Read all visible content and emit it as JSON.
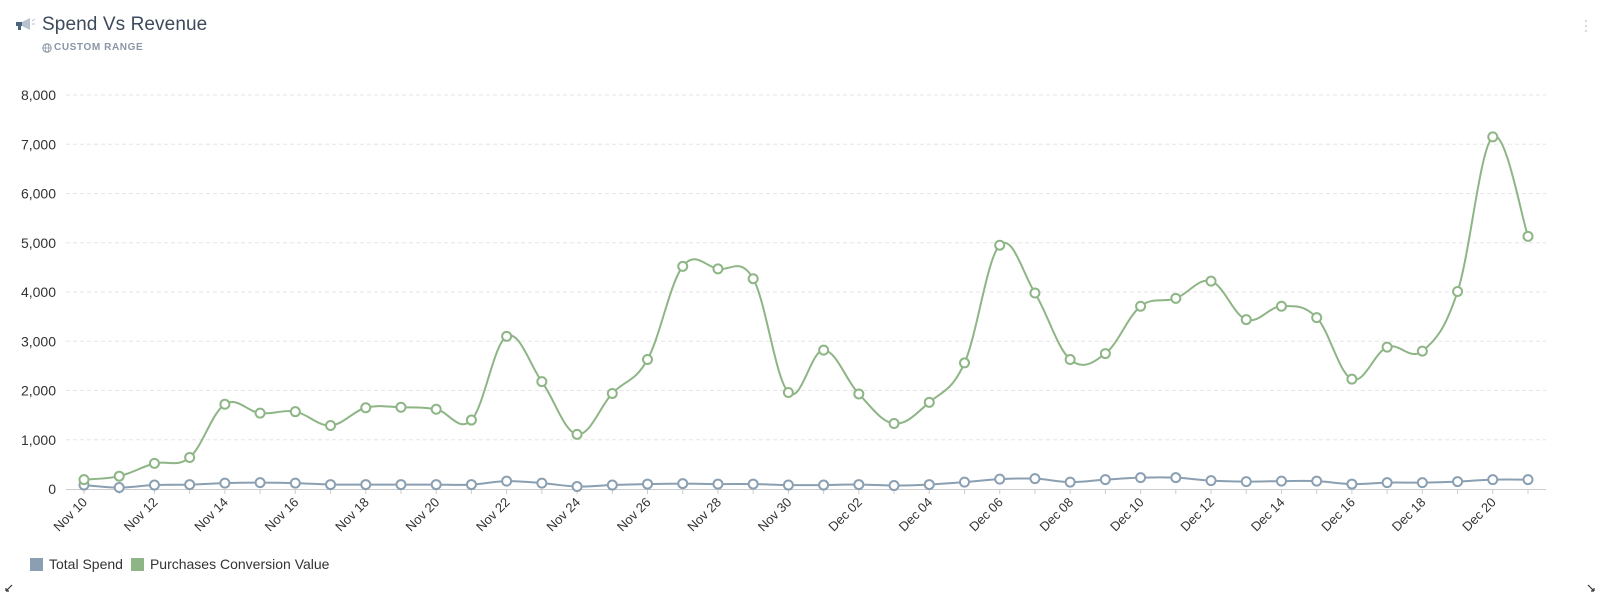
{
  "header": {
    "title": "Spend Vs Revenue",
    "subtitle": "CUSTOM RANGE",
    "icon": "megaphone-icon"
  },
  "colors": {
    "spend": "#8a9fb2",
    "revenue": "#8db585",
    "grid": "#e6e6e6",
    "axis": "#cccccc"
  },
  "chart_data": {
    "type": "line",
    "title": "Spend Vs Revenue",
    "xlabel": "",
    "ylabel": "",
    "ylim": [
      0,
      8000
    ],
    "y_ticks": [
      "0",
      "1,000",
      "2,000",
      "3,000",
      "4,000",
      "5,000",
      "6,000",
      "7,000",
      "8,000"
    ],
    "x": [
      "Nov 10",
      "Nov 11",
      "Nov 12",
      "Nov 13",
      "Nov 14",
      "Nov 15",
      "Nov 16",
      "Nov 17",
      "Nov 18",
      "Nov 19",
      "Nov 20",
      "Nov 21",
      "Nov 22",
      "Nov 23",
      "Nov 24",
      "Nov 25",
      "Nov 26",
      "Nov 27",
      "Nov 28",
      "Nov 29",
      "Nov 30",
      "Dec 01",
      "Dec 02",
      "Dec 03",
      "Dec 04",
      "Dec 05",
      "Dec 06",
      "Dec 07",
      "Dec 08",
      "Dec 09",
      "Dec 10",
      "Dec 11",
      "Dec 12",
      "Dec 13",
      "Dec 14",
      "Dec 15",
      "Dec 16",
      "Dec 17",
      "Dec 18",
      "Dec 19",
      "Dec 20",
      "Dec 21"
    ],
    "x_tick_labels": [
      "Nov 10",
      "Nov 12",
      "Nov 14",
      "Nov 16",
      "Nov 18",
      "Nov 20",
      "Nov 22",
      "Nov 24",
      "Nov 26",
      "Nov 28",
      "Nov 30",
      "Dec 02",
      "Dec 04",
      "Dec 06",
      "Dec 08",
      "Dec 10",
      "Dec 12",
      "Dec 14",
      "Dec 16",
      "Dec 18",
      "Dec 20"
    ],
    "grid": true,
    "legend_position": "bottom-left",
    "series": [
      {
        "name": "Total Spend",
        "values": [
          80,
          30,
          80,
          90,
          120,
          130,
          120,
          90,
          90,
          90,
          90,
          90,
          160,
          120,
          50,
          80,
          100,
          110,
          100,
          100,
          80,
          80,
          90,
          70,
          90,
          140,
          200,
          210,
          140,
          190,
          230,
          230,
          170,
          150,
          160,
          160,
          100,
          130,
          130,
          150,
          190,
          190
        ]
      },
      {
        "name": "Purchases Conversion Value",
        "values": [
          190,
          260,
          520,
          640,
          1720,
          1540,
          1570,
          1290,
          1650,
          1660,
          1620,
          1400,
          3100,
          2180,
          1110,
          1940,
          2630,
          4520,
          4470,
          4270,
          1960,
          2820,
          1930,
          1330,
          1760,
          2560,
          4950,
          3980,
          2630,
          2750,
          3710,
          3870,
          4220,
          3440,
          3710,
          3480,
          2230,
          2880,
          2800,
          4010,
          7150,
          5130
        ]
      }
    ]
  }
}
